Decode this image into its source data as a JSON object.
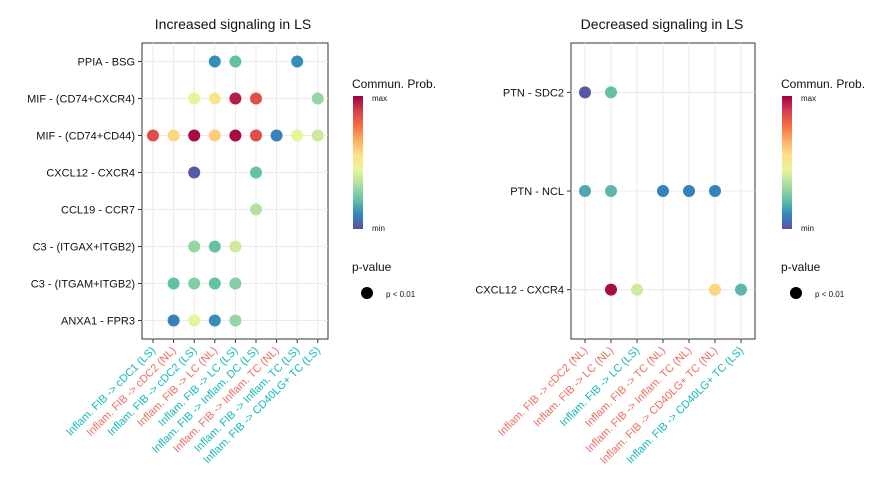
{
  "colors": {
    "ls": "#14b8b8",
    "nl": "#f26d5f",
    "scale": [
      "#5e4fa2",
      "#3288bd",
      "#66c2a5",
      "#abdda4",
      "#e6f598",
      "#fee08b",
      "#fdae61",
      "#f46d43",
      "#d53e4f",
      "#9e0142"
    ]
  },
  "chart_data": [
    {
      "type": "scatter",
      "title": "Increased signaling in LS",
      "y_categories": [
        "PPIA - BSG",
        "MIF - (CD74+CXCR4)",
        "MIF - (CD74+CD44)",
        "CXCL12 - CXCR4",
        "CCL19 - CCR7",
        "C3 - (ITGAX+ITGB2)",
        "C3 - (ITGAM+ITGB2)",
        "ANXA1 - FPR3"
      ],
      "x_categories": [
        {
          "label": "Inflam. FIB -> cDC1 (LS)",
          "group": "LS"
        },
        {
          "label": "Inflam. FIB -> cDC2 (NL)",
          "group": "NL"
        },
        {
          "label": "Inflam. FIB -> cDC2 (LS)",
          "group": "LS"
        },
        {
          "label": "Inflam. FIB -> LC (NL)",
          "group": "NL"
        },
        {
          "label": "Inflam. FIB -> LC (LS)",
          "group": "LS"
        },
        {
          "label": "Inflam. FIB -> Inflam. DC (LS)",
          "group": "LS"
        },
        {
          "label": "Inflam. FIB -> Inflam. TC (NL)",
          "group": "NL"
        },
        {
          "label": "Inflam. FIB -> Inflam. TC (LS)",
          "group": "LS"
        },
        {
          "label": "Inflam. FIB -> CD40LG+ TC (LS)",
          "group": "LS"
        }
      ],
      "points": [
        {
          "x": 3,
          "y": 0,
          "prob": 0.12
        },
        {
          "x": 4,
          "y": 0,
          "prob": 0.22
        },
        {
          "x": 7,
          "y": 0,
          "prob": 0.12
        },
        {
          "x": 2,
          "y": 1,
          "prob": 0.45
        },
        {
          "x": 3,
          "y": 1,
          "prob": 0.52
        },
        {
          "x": 4,
          "y": 1,
          "prob": 0.95
        },
        {
          "x": 5,
          "y": 1,
          "prob": 0.85
        },
        {
          "x": 8,
          "y": 1,
          "prob": 0.3
        },
        {
          "x": 0,
          "y": 2,
          "prob": 0.85
        },
        {
          "x": 1,
          "y": 2,
          "prob": 0.58
        },
        {
          "x": 2,
          "y": 2,
          "prob": 0.98
        },
        {
          "x": 3,
          "y": 2,
          "prob": 0.6
        },
        {
          "x": 4,
          "y": 2,
          "prob": 0.98
        },
        {
          "x": 5,
          "y": 2,
          "prob": 0.85
        },
        {
          "x": 6,
          "y": 2,
          "prob": 0.1
        },
        {
          "x": 7,
          "y": 2,
          "prob": 0.45
        },
        {
          "x": 8,
          "y": 2,
          "prob": 0.4
        },
        {
          "x": 2,
          "y": 3,
          "prob": 0.02
        },
        {
          "x": 5,
          "y": 3,
          "prob": 0.22
        },
        {
          "x": 5,
          "y": 4,
          "prob": 0.35
        },
        {
          "x": 2,
          "y": 5,
          "prob": 0.3
        },
        {
          "x": 3,
          "y": 5,
          "prob": 0.22
        },
        {
          "x": 4,
          "y": 5,
          "prob": 0.4
        },
        {
          "x": 1,
          "y": 6,
          "prob": 0.22
        },
        {
          "x": 2,
          "y": 6,
          "prob": 0.27
        },
        {
          "x": 3,
          "y": 6,
          "prob": 0.22
        },
        {
          "x": 4,
          "y": 6,
          "prob": 0.27
        },
        {
          "x": 1,
          "y": 7,
          "prob": 0.1
        },
        {
          "x": 2,
          "y": 7,
          "prob": 0.45
        },
        {
          "x": 3,
          "y": 7,
          "prob": 0.12
        },
        {
          "x": 4,
          "y": 7,
          "prob": 0.3
        }
      ],
      "grid": true,
      "legend": {
        "title": "Commun. Prob.",
        "max_label": "max",
        "min_label": "min",
        "pvalue_title": "p-value",
        "pvalue_label": "p < 0.01",
        "placement": "right"
      }
    },
    {
      "type": "scatter",
      "title": "Decreased signaling in LS",
      "y_categories": [
        "PTN - SDC2",
        "PTN - NCL",
        "CXCL12 - CXCR4"
      ],
      "x_categories": [
        {
          "label": "Inflam. FIB -> cDC2 (NL)",
          "group": "NL"
        },
        {
          "label": "Inflam. FIB -> LC (NL)",
          "group": "NL"
        },
        {
          "label": "Inflam. FIB -> LC (LS)",
          "group": "LS"
        },
        {
          "label": "Inflam. FIB -> TC (NL)",
          "group": "NL"
        },
        {
          "label": "Inflam. FIB -> Inflam. TC (NL)",
          "group": "NL"
        },
        {
          "label": "Inflam. FIB -> CD40LG+ TC (NL)",
          "group": "NL"
        },
        {
          "label": "Inflam. FIB -> CD40LG+ TC (LS)",
          "group": "LS"
        }
      ],
      "points": [
        {
          "x": 0,
          "y": 0,
          "prob": 0.02
        },
        {
          "x": 1,
          "y": 0,
          "prob": 0.22
        },
        {
          "x": 0,
          "y": 1,
          "prob": 0.17
        },
        {
          "x": 1,
          "y": 1,
          "prob": 0.2
        },
        {
          "x": 3,
          "y": 1,
          "prob": 0.1
        },
        {
          "x": 4,
          "y": 1,
          "prob": 0.1
        },
        {
          "x": 5,
          "y": 1,
          "prob": 0.1
        },
        {
          "x": 1,
          "y": 2,
          "prob": 0.98
        },
        {
          "x": 2,
          "y": 2,
          "prob": 0.4
        },
        {
          "x": 5,
          "y": 2,
          "prob": 0.58
        },
        {
          "x": 6,
          "y": 2,
          "prob": 0.2
        }
      ],
      "grid": true,
      "legend": {
        "title": "Commun. Prob.",
        "max_label": "max",
        "min_label": "min",
        "pvalue_title": "p-value",
        "pvalue_label": "p < 0.01",
        "placement": "right"
      }
    }
  ]
}
